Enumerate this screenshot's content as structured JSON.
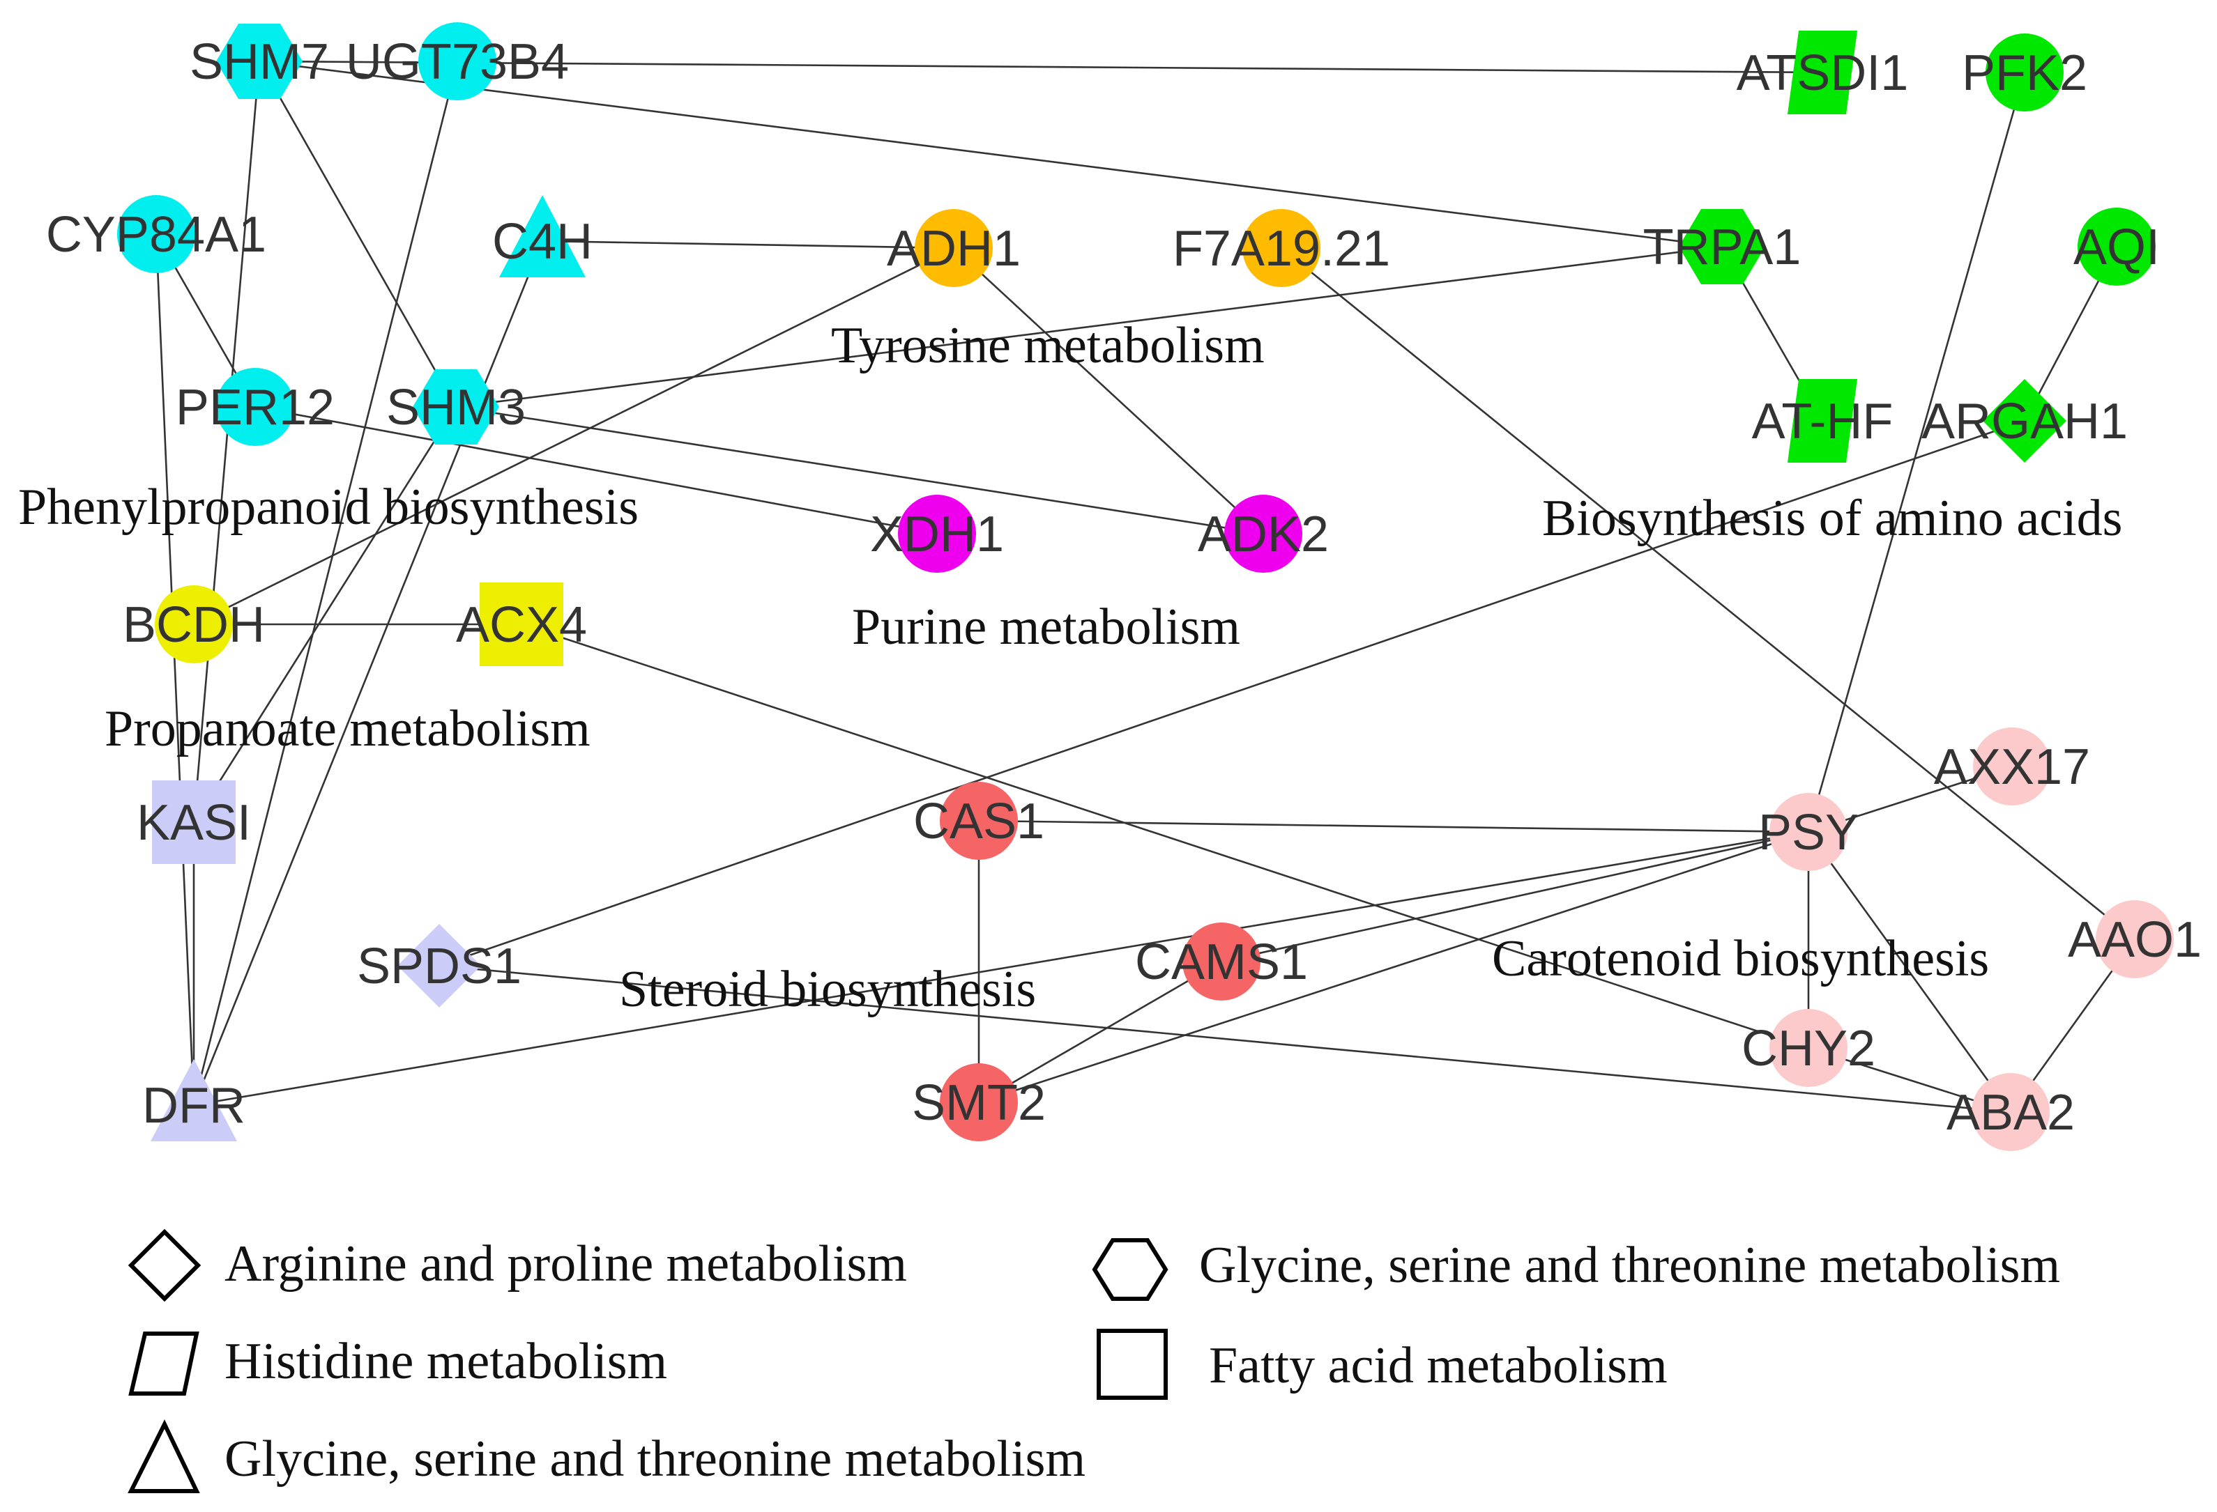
{
  "colors": {
    "cyan": "#00eeee",
    "green": "#00e800",
    "orange": "#ffbb00",
    "magenta": "#ee00ee",
    "yellow": "#eeee00",
    "lavender": "#ccccf8",
    "red": "#f56565",
    "pink": "#fccaca",
    "edge": "#333333"
  },
  "nodes": [
    {
      "id": "SHM7",
      "label": "SHM7",
      "shape": "hexagon",
      "color": "cyan"
    },
    {
      "id": "UGT73B4",
      "label": "UGT73B4",
      "shape": "circle",
      "color": "cyan"
    },
    {
      "id": "CYP84A1",
      "label": "CYP84A1",
      "shape": "circle",
      "color": "cyan"
    },
    {
      "id": "C4H",
      "label": "C4H",
      "shape": "triangle",
      "color": "cyan"
    },
    {
      "id": "PER12",
      "label": "PER12",
      "shape": "circle",
      "color": "cyan"
    },
    {
      "id": "SHM3",
      "label": "SHM3",
      "shape": "hexagon",
      "color": "cyan"
    },
    {
      "id": "ADH1",
      "label": "ADH1",
      "shape": "circle",
      "color": "orange"
    },
    {
      "id": "F7A19.21",
      "label": "F7A19.21",
      "shape": "circle",
      "color": "orange"
    },
    {
      "id": "XDH1",
      "label": "XDH1",
      "shape": "circle",
      "color": "magenta"
    },
    {
      "id": "ADK2",
      "label": "ADK2",
      "shape": "circle",
      "color": "magenta"
    },
    {
      "id": "BCDH",
      "label": "BCDH",
      "shape": "circle",
      "color": "yellow"
    },
    {
      "id": "ACX4",
      "label": "ACX4",
      "shape": "square",
      "color": "yellow"
    },
    {
      "id": "KASI",
      "label": "KASI",
      "shape": "square",
      "color": "lavender"
    },
    {
      "id": "SPDS1",
      "label": "SPDS1",
      "shape": "diamond",
      "color": "lavender"
    },
    {
      "id": "DFR",
      "label": "DFR",
      "shape": "triangle",
      "color": "lavender"
    },
    {
      "id": "ATSDI1",
      "label": "ATSDI1",
      "shape": "parallelogram",
      "color": "green"
    },
    {
      "id": "PFK2",
      "label": "PFK2",
      "shape": "circle",
      "color": "green"
    },
    {
      "id": "TRPA1",
      "label": "TRPA1",
      "shape": "hexagon",
      "color": "green"
    },
    {
      "id": "AQI",
      "label": "AQI",
      "shape": "circle",
      "color": "green"
    },
    {
      "id": "AT-HF",
      "label": "AT-HF",
      "shape": "parallelogram",
      "color": "green"
    },
    {
      "id": "ARGAH1",
      "label": "ARGAH1",
      "shape": "diamond",
      "color": "green"
    },
    {
      "id": "CAS1",
      "label": "CAS1",
      "shape": "circle",
      "color": "red"
    },
    {
      "id": "CAMS1",
      "label": "CAMS1",
      "shape": "circle",
      "color": "red"
    },
    {
      "id": "SMT2",
      "label": "SMT2",
      "shape": "circle",
      "color": "red"
    },
    {
      "id": "PSY",
      "label": "PSY",
      "shape": "circle",
      "color": "pink"
    },
    {
      "id": "AXX17",
      "label": "AXX17",
      "shape": "circle",
      "color": "pink"
    },
    {
      "id": "AAO1",
      "label": "AAO1",
      "shape": "circle",
      "color": "pink"
    },
    {
      "id": "CHY2",
      "label": "CHY2",
      "shape": "circle",
      "color": "pink"
    },
    {
      "id": "ABA2",
      "label": "ABA2",
      "shape": "circle",
      "color": "pink"
    }
  ],
  "edges": [
    [
      "SHM7",
      "ATSDI1"
    ],
    [
      "SHM7",
      "TRPA1"
    ],
    [
      "SHM7",
      "SHM3"
    ],
    [
      "SHM7",
      "KASI"
    ],
    [
      "UGT73B4",
      "DFR"
    ],
    [
      "CYP84A1",
      "PER12"
    ],
    [
      "CYP84A1",
      "DFR"
    ],
    [
      "C4H",
      "ADH1"
    ],
    [
      "C4H",
      "DFR"
    ],
    [
      "SHM3",
      "TRPA1"
    ],
    [
      "SHM3",
      "ADK2"
    ],
    [
      "SHM3",
      "KASI"
    ],
    [
      "PER12",
      "XDH1"
    ],
    [
      "ADH1",
      "ADK2"
    ],
    [
      "ADH1",
      "BCDH"
    ],
    [
      "F7A19.21",
      "AAO1"
    ],
    [
      "BCDH",
      "ACX4"
    ],
    [
      "ACX4",
      "CHY2"
    ],
    [
      "KASI",
      "DFR"
    ],
    [
      "SPDS1",
      "ARGAH1"
    ],
    [
      "SPDS1",
      "ABA2"
    ],
    [
      "DFR",
      "PSY"
    ],
    [
      "TRPA1",
      "AT-HF"
    ],
    [
      "AQI",
      "ARGAH1"
    ],
    [
      "PFK2",
      "PSY"
    ],
    [
      "CAS1",
      "PSY"
    ],
    [
      "CAS1",
      "SMT2"
    ],
    [
      "CAMS1",
      "PSY"
    ],
    [
      "CAMS1",
      "SMT2"
    ],
    [
      "SMT2",
      "PSY"
    ],
    [
      "PSY",
      "AXX17"
    ],
    [
      "PSY",
      "CHY2"
    ],
    [
      "PSY",
      "ABA2"
    ],
    [
      "CHY2",
      "ABA2"
    ],
    [
      "AAO1",
      "ABA2"
    ]
  ],
  "pathway_labels": [
    {
      "id": "tyrosine",
      "text": "Tyrosine metabolism"
    },
    {
      "id": "phenylpropanoid",
      "text": "Phenylpropanoid biosynthesis"
    },
    {
      "id": "purine",
      "text": "Purine metabolism"
    },
    {
      "id": "propanoate",
      "text": "Propanoate metabolism"
    },
    {
      "id": "amino-acids",
      "text": "Biosynthesis of amino acids"
    },
    {
      "id": "carotenoid",
      "text": "Carotenoid biosynthesis"
    },
    {
      "id": "steroid",
      "text": "Steroid biosynthesis"
    }
  ],
  "legend": [
    {
      "shape": "diamond",
      "text": "Arginine and proline metabolism"
    },
    {
      "shape": "hexagon",
      "text": "Glycine, serine and threonine metabolism"
    },
    {
      "shape": "parallelogram",
      "text": "Histidine metabolism"
    },
    {
      "shape": "square",
      "text": "Fatty acid metabolism"
    },
    {
      "shape": "triangle",
      "text": "Glycine, serine and threonine metabolism"
    }
  ]
}
